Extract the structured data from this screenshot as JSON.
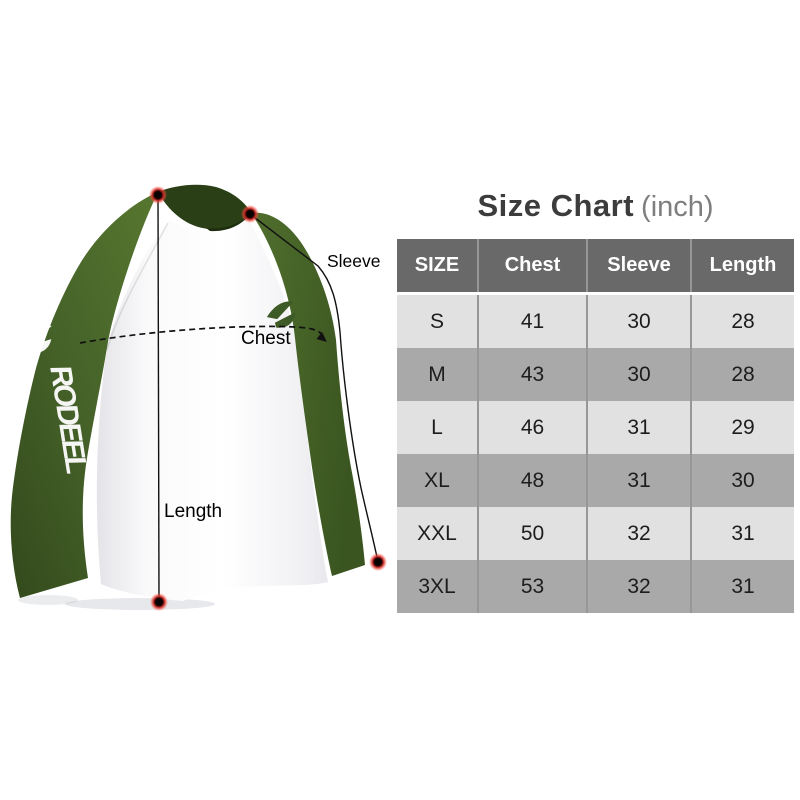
{
  "title": {
    "main": "Size Chart",
    "unit": "(inch)"
  },
  "chart_data": {
    "type": "table",
    "title": "Size Chart (inch)",
    "unit": "inch",
    "columns": [
      "SIZE",
      "Chest",
      "Sleeve",
      "Length"
    ],
    "rows": [
      [
        "S",
        "41",
        "30",
        "28"
      ],
      [
        "M",
        "43",
        "30",
        "28"
      ],
      [
        "L",
        "46",
        "31",
        "29"
      ],
      [
        "XL",
        "48",
        "31",
        "30"
      ],
      [
        "XXL",
        "50",
        "32",
        "31"
      ],
      [
        "3XL",
        "53",
        "32",
        "31"
      ]
    ]
  },
  "diagram": {
    "brand": "RODEEL",
    "labels": {
      "sleeve": "Sleeve",
      "chest": "Chest",
      "length": "Length"
    }
  },
  "colors": {
    "sleeve_green": "#4a672b",
    "sleeve_green_dark": "#33491c",
    "collar_green": "#2a3f16",
    "logo_green": "#3e5a26",
    "header_bg": "#696969",
    "row_light": "#e1e1e1",
    "row_dark": "#a9a9a9",
    "header_text": "#ffffff",
    "cell_text": "#1d1d1d",
    "title_main": "#3c3c3c",
    "title_unit": "#7e7e7e",
    "divider": "#979797",
    "annotation": "#111111",
    "dot_red": "#d6201c"
  }
}
